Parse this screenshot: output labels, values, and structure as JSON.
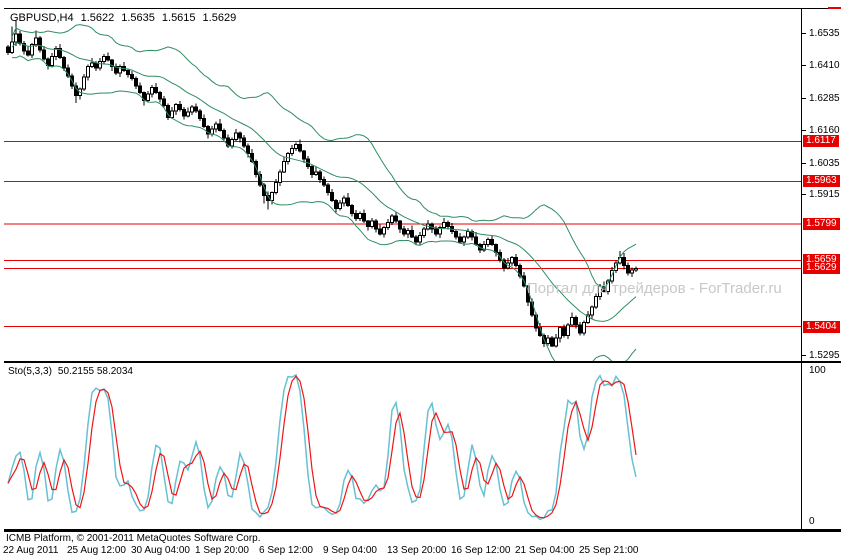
{
  "header": {
    "symbol_period": "GBPUSD,H4",
    "open": "1.5622",
    "high": "1.5635",
    "low": "1.5615",
    "close": "1.5629"
  },
  "watermark": "Портал для трейдеров - ForTrader.ru",
  "indicator": {
    "name": "Sto(5,3,3)",
    "values": "50.2155 58.2034"
  },
  "footer": {
    "copyright": "ICMB Platform, © 2001-2011 MetaQuotes Software Corp."
  },
  "colors": {
    "background": "#ffffff",
    "axis_text": "#000000",
    "candle_up_fill": "#ffffff",
    "candle_down_fill": "#000000",
    "candle_border": "#000000",
    "bollinger": "#2f8e62",
    "level_line": "#e60000",
    "badge_bg": "#e60000",
    "badge_text": "#ffffff",
    "sto_main": "#67c1d4",
    "sto_signal": "#f01515",
    "watermark": "#c8c8c8"
  },
  "chart_data": [
    {
      "type": "candlestick",
      "title": "GBPUSD,H4",
      "ylim": [
        1.5272,
        1.6627
      ],
      "grid": false,
      "price_axis_labels": [
        "1.6535",
        "1.6410",
        "1.6285",
        "1.6160",
        "1.6035",
        "1.5915",
        "1.5295"
      ],
      "level_lines": [
        1.6117,
        1.5963,
        1.5799,
        1.5659,
        1.5404
      ],
      "current_price": 1.5629,
      "x_labels": [
        {
          "text": "22 Aug 2011",
          "bar": 0
        },
        {
          "text": "25 Aug 12:00",
          "bar": 16
        },
        {
          "text": "30 Aug 04:00",
          "bar": 32
        },
        {
          "text": "1 Sep 20:00",
          "bar": 48
        },
        {
          "text": "6 Sep 12:00",
          "bar": 64
        },
        {
          "text": "9 Sep 04:00",
          "bar": 80
        },
        {
          "text": "13 Sep 20:00",
          "bar": 96
        },
        {
          "text": "16 Sep 12:00",
          "bar": 112
        },
        {
          "text": "21 Sep 04:00",
          "bar": 128
        },
        {
          "text": "25 Sep 21:00",
          "bar": 144
        }
      ],
      "bar_start_x": 4,
      "bar_step": 4,
      "bollinger": {
        "period": 20,
        "deviation": 2
      },
      "candles": {
        "first_open": 1.648,
        "closes": [
          1.646,
          1.65,
          1.653,
          1.6495,
          1.6465,
          1.645,
          1.649,
          1.6515,
          1.647,
          1.6435,
          1.641,
          1.6445,
          1.6475,
          1.644,
          1.64,
          1.637,
          1.633,
          1.6295,
          1.632,
          1.6365,
          1.6405,
          1.642,
          1.64,
          1.6425,
          1.6445,
          1.643,
          1.6405,
          1.638,
          1.6405,
          1.639,
          1.6375,
          1.636,
          1.633,
          1.6305,
          1.6275,
          1.63,
          1.6325,
          1.6305,
          1.628,
          1.6255,
          1.621,
          1.6235,
          1.626,
          1.624,
          1.6215,
          1.623,
          1.625,
          1.6235,
          1.6205,
          1.6175,
          1.6145,
          1.6165,
          1.6185,
          1.616,
          1.613,
          1.61,
          1.6125,
          1.615,
          1.613,
          1.61,
          1.607,
          1.604,
          1.599,
          1.595,
          1.591,
          1.589,
          1.592,
          1.596,
          1.6,
          1.604,
          1.607,
          1.609,
          1.6105,
          1.608,
          1.605,
          1.602,
          1.599,
          1.6,
          1.597,
          1.595,
          1.592,
          1.589,
          1.586,
          1.588,
          1.59,
          1.587,
          1.584,
          1.582,
          1.584,
          1.581,
          1.579,
          1.581,
          1.578,
          1.576,
          1.5785,
          1.5805,
          1.583,
          1.581,
          1.578,
          1.576,
          1.5775,
          1.575,
          1.573,
          1.5755,
          1.578,
          1.58,
          1.578,
          1.576,
          1.5785,
          1.5805,
          1.579,
          1.577,
          1.575,
          1.573,
          1.575,
          1.577,
          1.575,
          1.572,
          1.57,
          1.572,
          1.574,
          1.572,
          1.569,
          1.566,
          1.563,
          1.565,
          1.567,
          1.564,
          1.56,
          1.556,
          1.55,
          1.545,
          1.54,
          1.537,
          1.534,
          1.536,
          1.533,
          1.536,
          1.54,
          1.537,
          1.541,
          1.544,
          1.541,
          1.538,
          1.542,
          1.545,
          1.548,
          1.552,
          1.556,
          1.554,
          1.558,
          1.562,
          1.565,
          1.567,
          1.564,
          1.561,
          1.5622,
          1.5629
        ],
        "wick_high_pattern": [
          0.0008,
          0.0015,
          0.0005,
          0.0012,
          0.0009,
          0.0018,
          0.0007,
          0.0013
        ],
        "wick_low_pattern": [
          0.001,
          0.0006,
          0.0016,
          0.0008,
          0.0014,
          0.0005,
          0.0012,
          0.0009
        ],
        "wick_overrides": {
          "1": {
            "h": 1.656
          },
          "2": {
            "h": 1.6585
          },
          "7": {
            "h": 1.6545
          },
          "17": {
            "l": 1.6265
          },
          "34": {
            "l": 1.6255
          },
          "64": {
            "l": 1.5878
          },
          "65": {
            "l": 1.5855
          },
          "73": {
            "h": 1.6125
          },
          "134": {
            "l": 1.5325
          },
          "136": {
            "l": 1.5325
          },
          "153": {
            "h": 1.5695
          },
          "154": {
            "h": 1.5688
          }
        },
        "last_bar": {
          "o": 1.5622,
          "h": 1.5635,
          "l": 1.5615,
          "c": 1.5629
        }
      }
    },
    {
      "type": "line",
      "title": "Sto(5,3,3)",
      "display_values": "50.2155 58.2034",
      "ylim": [
        0,
        100
      ],
      "y_axis_labels": [
        "100",
        "0"
      ],
      "stochastic": {
        "k_period": 5,
        "slowing": 3,
        "d_period": 3,
        "derived_from": "candles"
      },
      "series": [
        {
          "name": "%K",
          "color_key": "sto_main"
        },
        {
          "name": "%D",
          "color_key": "sto_signal"
        }
      ]
    }
  ]
}
